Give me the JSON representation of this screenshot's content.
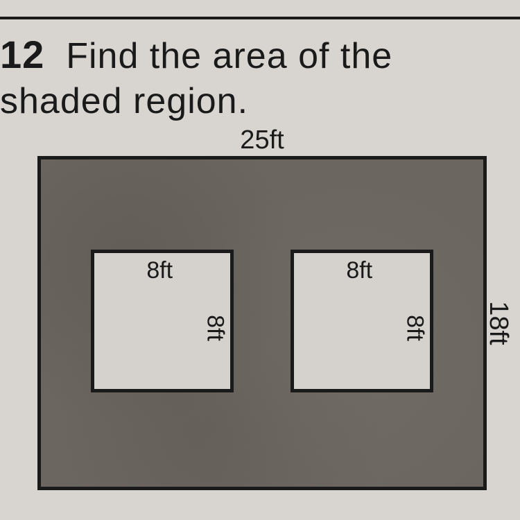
{
  "problem": {
    "number": "12",
    "text_line1": "Find the area of the",
    "text_line2": "shaded region."
  },
  "diagram": {
    "outer": {
      "width_label": "25ft",
      "height_label": "18ft",
      "border_color": "#1a1a1a",
      "fill_color": "#6b6660"
    },
    "holes": [
      {
        "width_label": "8ft",
        "height_label": "8ft",
        "fill_color": "#d5d2cd"
      },
      {
        "width_label": "8ft",
        "height_label": "8ft",
        "fill_color": "#d5d2cd"
      }
    ]
  },
  "style": {
    "page_background": "#d8d5d0",
    "text_color": "#1a1a1a",
    "problem_fontsize": 52,
    "label_fontsize": 38,
    "hole_label_fontsize": 34,
    "border_width": 5
  }
}
